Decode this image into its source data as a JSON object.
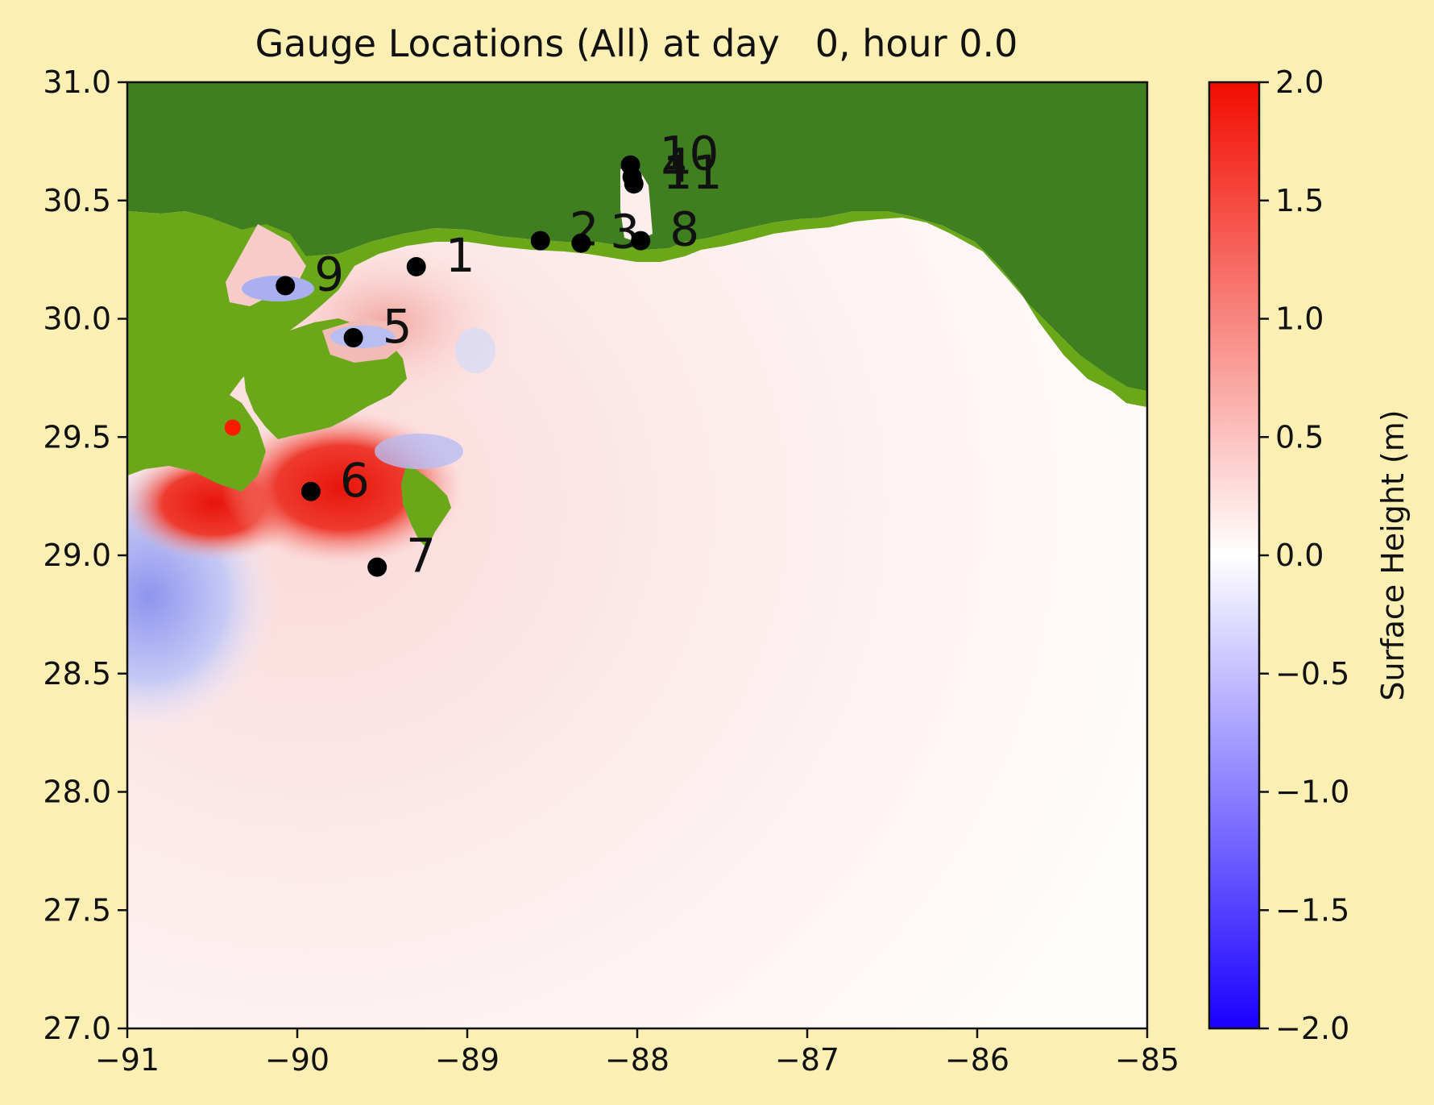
{
  "chart_data": {
    "type": "heatmap",
    "title": "Gauge Locations (All) at day   0, hour 0.0",
    "xlabel": "",
    "ylabel": "",
    "xlim": [
      -91,
      -85
    ],
    "ylim": [
      27.0,
      31.0
    ],
    "x_ticks": [
      -91,
      -90,
      -89,
      -88,
      -87,
      -86,
      -85
    ],
    "y_ticks": [
      27.0,
      27.5,
      28.0,
      28.5,
      29.0,
      29.5,
      30.0,
      30.5,
      31.0
    ],
    "x_tick_labels": [
      "−91",
      "−90",
      "−89",
      "−88",
      "−87",
      "−86",
      "−85"
    ],
    "y_tick_labels": [
      "27.0",
      "27.5",
      "28.0",
      "28.5",
      "29.0",
      "29.5",
      "30.0",
      "30.5",
      "31.0"
    ],
    "grid": false,
    "colorbar": {
      "label": "Surface Height (m)",
      "range": [
        -2.0,
        2.0
      ],
      "ticks": [
        -2.0,
        -1.5,
        -1.0,
        -0.5,
        0.0,
        0.5,
        1.0,
        1.5,
        2.0
      ],
      "tick_labels": [
        "−2.0",
        "−1.5",
        "−1.0",
        "−0.5",
        "0.0",
        "0.5",
        "1.0",
        "1.5",
        "2.0"
      ],
      "colormap": [
        "#0000ff",
        "#ffffff",
        "#ff0000"
      ]
    },
    "gauges": [
      {
        "label": "1",
        "x": -89.3,
        "y": 30.22
      },
      {
        "label": "2",
        "x": -88.57,
        "y": 30.33
      },
      {
        "label": "3",
        "x": -88.33,
        "y": 30.32
      },
      {
        "label": "4",
        "x": -88.03,
        "y": 30.6
      },
      {
        "label": "5",
        "x": -89.67,
        "y": 29.92
      },
      {
        "label": "6",
        "x": -89.92,
        "y": 29.27
      },
      {
        "label": "7",
        "x": -89.53,
        "y": 28.95
      },
      {
        "label": "8",
        "x": -87.98,
        "y": 30.33
      },
      {
        "label": "9",
        "x": -90.07,
        "y": 30.14
      },
      {
        "label": "10",
        "x": -88.04,
        "y": 30.65
      },
      {
        "label": "11",
        "x": -88.02,
        "y": 30.57
      }
    ],
    "extra_point": {
      "x": -90.38,
      "y": 29.54,
      "color": "#ff1a00"
    },
    "colors": {
      "land_dark": "#3f7f1f",
      "land_light": "#6aa81a",
      "background": "#fcefb4",
      "gauge": "#000000"
    }
  }
}
